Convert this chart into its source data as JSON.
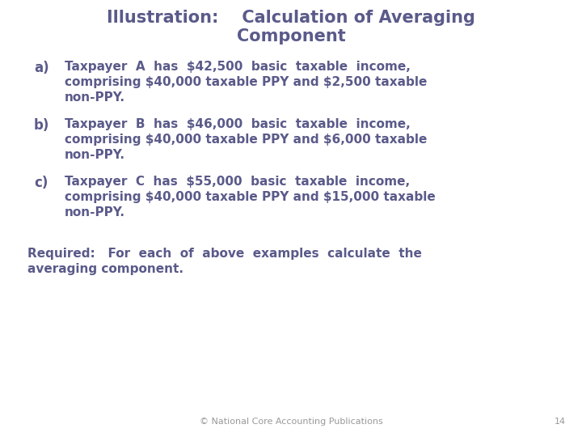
{
  "title_line1": "Illustration:    Calculation of Averaging",
  "title_line2": "Component",
  "title_color": "#5a5a8a",
  "title_fontsize": 15,
  "body_color": "#5a5a8a",
  "body_fontsize": 11,
  "label_fontsize": 12,
  "items": [
    {
      "label": "a)",
      "lines": [
        "Taxpayer  A  has  $42,500  basic  taxable  income,",
        "comprising $40,000 taxable PPY and $2,500 taxable",
        "non-PPY."
      ]
    },
    {
      "label": "b)",
      "lines": [
        "Taxpayer  B  has  $46,000  basic  taxable  income,",
        "comprising $40,000 taxable PPY and $6,000 taxable",
        "non-PPY."
      ]
    },
    {
      "label": "c)",
      "lines": [
        "Taxpayer  C  has  $55,000  basic  taxable  income,",
        "comprising $40,000 taxable PPY and $15,000 taxable",
        "non-PPY."
      ]
    }
  ],
  "required_lines": [
    "Required:   For  each  of  above  examples  calculate  the",
    "averaging component."
  ],
  "footer_text": "© National Core Accounting Publications",
  "footer_page": "14",
  "footer_color": "#999999",
  "footer_fontsize": 8,
  "background_color": "#ffffff"
}
